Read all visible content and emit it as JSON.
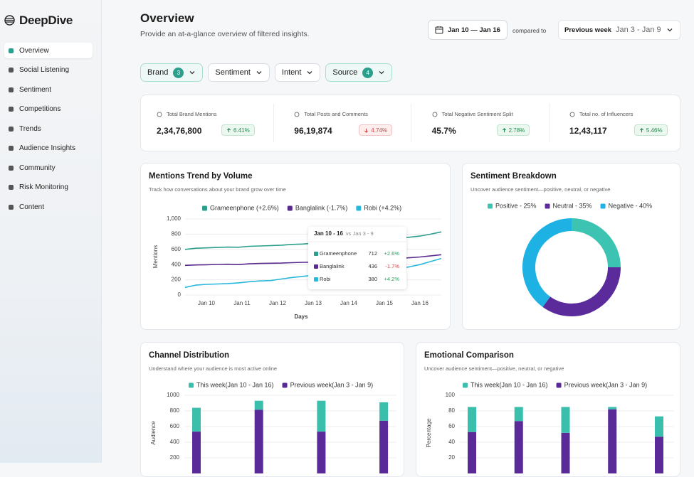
{
  "sidebar": {
    "brand": "DeepDive",
    "items": [
      "Overview",
      "Social Listening",
      "Sentiment",
      "Competitions",
      "Trends",
      "Audience Insights",
      "Community",
      "Risk Monitoring",
      "Content"
    ]
  },
  "header": {
    "title": "Overview",
    "subtitle": "Provide an at-a-glance overview of filtered insights.",
    "date_range": "Jan 10 — Jan 16",
    "compare_label": "compared to",
    "compare_period": "Previous week",
    "compare_range": "Jan 3 - Jan 9"
  },
  "filters": [
    {
      "label": "Brand",
      "count": 3
    },
    {
      "label": "Sentiment"
    },
    {
      "label": "Intent"
    },
    {
      "label": "Source",
      "count": 4
    }
  ],
  "kpis": [
    {
      "label": "Total Brand Mentions",
      "value": "2,34,76,800",
      "change": "6.41%",
      "direction": "up"
    },
    {
      "label": "Total Posts and Comments",
      "value": "96,19,874",
      "change": "4.74%",
      "direction": "down"
    },
    {
      "label": "Total Negative Sentiment Split",
      "value": "45.7%",
      "change": "2.78%",
      "direction": "up"
    },
    {
      "label": "Total no. of Influencers",
      "value": "12,43,117",
      "change": "5.46%",
      "direction": "up"
    }
  ],
  "mentions_chart": {
    "type": "line",
    "title": "Mentions Trend by Volume",
    "subtitle": "Track how conversations about your brand grow over time",
    "xlabel": "Days",
    "ylabel": "Mentions",
    "x": [
      9.4,
      9.7,
      10,
      10.3,
      10.6,
      10.9,
      11.2,
      11.5,
      11.8,
      12.1,
      12.4,
      12.7,
      13,
      13.3,
      13.6,
      13.9,
      14.2,
      14.5,
      14.8,
      15.1,
      15.4,
      15.7,
      16,
      16.3,
      16.6
    ],
    "xlim": [
      9.4,
      16.6
    ],
    "xticks": [
      {
        "value": 10,
        "label": "Jan 10"
      },
      {
        "value": 11,
        "label": "Jan 11"
      },
      {
        "value": 12,
        "label": "Jan 12"
      },
      {
        "value": 13,
        "label": "Jan 13"
      },
      {
        "value": 14,
        "label": "Jan 14"
      },
      {
        "value": 15,
        "label": "Jan 15"
      },
      {
        "value": 16,
        "label": "Jan 16"
      }
    ],
    "ylim": [
      0,
      1000
    ],
    "yticks": [
      0,
      200,
      400,
      600,
      800,
      {
        "value": 1000,
        "label": "1,000"
      }
    ],
    "grid": true,
    "series": [
      {
        "name": "Grameenphone (+2.6%)",
        "color": "#2b9e8c",
        "values": [
          600,
          615,
          620,
          625,
          630,
          628,
          640,
          645,
          650,
          655,
          665,
          670,
          680,
          690,
          700,
          710,
          715,
          725,
          735,
          740,
          750,
          760,
          775,
          800,
          830
        ]
      },
      {
        "name": "Banglalink (-1.7%)",
        "color": "#5b2a8f",
        "values": [
          390,
          395,
          398,
          402,
          405,
          400,
          410,
          415,
          418,
          420,
          425,
          430,
          432,
          436,
          440,
          445,
          450,
          455,
          465,
          470,
          480,
          490,
          500,
          515,
          530
        ]
      },
      {
        "name": "Robi (+4.2%)",
        "color": "#27b8dc",
        "values": [
          100,
          130,
          140,
          145,
          150,
          160,
          175,
          185,
          190,
          210,
          230,
          245,
          260,
          280,
          300,
          310,
          320,
          330,
          335,
          340,
          350,
          370,
          400,
          440,
          480
        ]
      }
    ],
    "tooltip": {
      "title": "Jan 10 - 16",
      "subtitle": "vs Jan 3 - 9",
      "rows": [
        {
          "name": "Grameenphone",
          "value": 712,
          "change": "+2.6%"
        },
        {
          "name": "Banglalink",
          "value": 436,
          "change": "-1.7%"
        },
        {
          "name": "Robi",
          "value": 380,
          "change": "+4.2%"
        }
      ]
    }
  },
  "sentiment_chart": {
    "type": "donut",
    "title": "Sentiment Breakdown",
    "subtitle": "Uncover audience sentiment—positive, neutral, or negative",
    "values": [
      25,
      35,
      40
    ],
    "value_labels": [
      "Positive - 25%",
      "Neutral - 35%",
      "Negative - 40%"
    ],
    "colors": [
      "#3cc3b1",
      "#5b2a9b",
      "#1eb2e4"
    ]
  },
  "channel_chart": {
    "type": "stacked_bar",
    "title": "Channel Distribution",
    "subtitle": "Understand where your audience is most active online",
    "ylabel": "Audience",
    "categories": [
      null,
      null,
      null,
      null
    ],
    "ylim": [
      0,
      1000
    ],
    "yticks": [
      200,
      400,
      600,
      800,
      1000
    ],
    "grid": true,
    "series": [
      {
        "name": "This week(Jan 10 - Jan 16)",
        "color": "#3bbfad",
        "values": [
          305,
          115,
          395,
          235
        ]
      },
      {
        "name": "Previous week(Jan 3 - Jan 9)",
        "color": "#5a2a98",
        "values": [
          535,
          815,
          535,
          675
        ]
      }
    ]
  },
  "emotional_chart": {
    "type": "stacked_bar",
    "title": "Emotional Comparison",
    "subtitle": "Uncover audience sentiment—positive, neutral, or negative",
    "ylabel": "Percentage",
    "categories": [
      null,
      null,
      null,
      null,
      null
    ],
    "ylim": [
      0,
      100
    ],
    "yticks": [
      20,
      40,
      60,
      80,
      100
    ],
    "grid": true,
    "series": [
      {
        "name": "This week(Jan 10 - Jan 16)",
        "color": "#3bbfad",
        "values": [
          32,
          18,
          33,
          3,
          26
        ]
      },
      {
        "name": "Previous week(Jan 3 - Jan 9)",
        "color": "#5a2a98",
        "values": [
          53,
          67,
          52,
          82,
          47
        ]
      }
    ]
  }
}
